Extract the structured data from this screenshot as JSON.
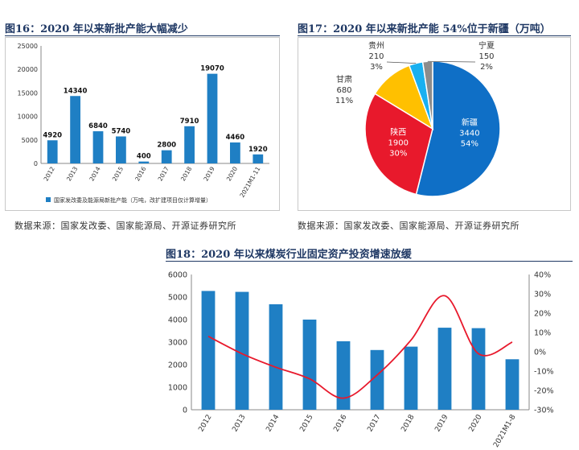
{
  "fig16": {
    "title": "图16：2020 年以来新批产能大幅减少",
    "source": "数据来源：国家发改委、国家能源局、开源证券研究所"
  },
  "fig17": {
    "title": "图17：2020 年以来新批产能 54%位于新疆（万吨）",
    "source": "数据来源：国家发改委、国家能源局、开源证券研究所"
  },
  "fig18": {
    "title": "图18：2020 年以来煤炭行业固定资产投资增速放缓"
  },
  "colors": {
    "blue": "#1f7fc4",
    "red": "#e8192c",
    "darkred": "#cc0000",
    "yellow": "#ffc000",
    "sky": "#19b0f0",
    "gray": "#8c8c8c",
    "pieblue": "#0f6fc6"
  },
  "chart_data": [
    {
      "id": "fig16",
      "type": "bar",
      "categories": [
        "2012",
        "2013",
        "2014",
        "2015",
        "2016",
        "2017",
        "2018",
        "2019",
        "2020",
        "2021M1-11"
      ],
      "values": [
        4920,
        14340,
        6840,
        5740,
        400,
        2800,
        7910,
        19070,
        4460,
        1920
      ],
      "data_labels": [
        "4920",
        "14340",
        "6840",
        "5740",
        "400",
        "2800",
        "7910",
        "19070",
        "4460",
        "1920"
      ],
      "ylim": [
        0,
        25000
      ],
      "yticks": [
        "0",
        "5000",
        "10000",
        "15000",
        "20000",
        "25000"
      ],
      "legend": "国家发改委及能源局新批产能（万吨，改扩建项目仅计算增量）",
      "legend_position": "bottom",
      "grid": false
    },
    {
      "id": "fig17",
      "type": "pie",
      "slices": [
        {
          "name": "新疆",
          "value": 3440,
          "value_label": "3440",
          "pct": "54%"
        },
        {
          "name": "陕西",
          "value": 1900,
          "value_label": "1900",
          "pct": "30%"
        },
        {
          "name": "甘肃",
          "value": 680,
          "value_label": "680",
          "pct": "11%"
        },
        {
          "name": "贵州",
          "value": 210,
          "value_label": "210",
          "pct": "3%"
        },
        {
          "name": "宁夏",
          "value": 150,
          "value_label": "150",
          "pct": "2%"
        }
      ]
    },
    {
      "id": "fig18",
      "type": "bar",
      "categories": [
        "2012",
        "2013",
        "2014",
        "2015",
        "2016",
        "2017",
        "2018",
        "2019",
        "2020",
        "2021M1-8"
      ],
      "values": [
        5270,
        5230,
        4680,
        4000,
        3040,
        2650,
        2800,
        3640,
        3620,
        2240
      ],
      "line_values": [
        8,
        -1,
        -8,
        -14,
        -24,
        -12,
        6,
        29,
        -1,
        5
      ],
      "ylim": [
        0,
        6000
      ],
      "yticks": [
        "0",
        "1000",
        "2000",
        "3000",
        "4000",
        "5000",
        "6000"
      ],
      "y2lim": [
        -30,
        40
      ],
      "y2ticks": [
        "-30%",
        "-20%",
        "-10%",
        "0%",
        "10%",
        "20%",
        "30%",
        "40%"
      ],
      "grid": false
    }
  ]
}
